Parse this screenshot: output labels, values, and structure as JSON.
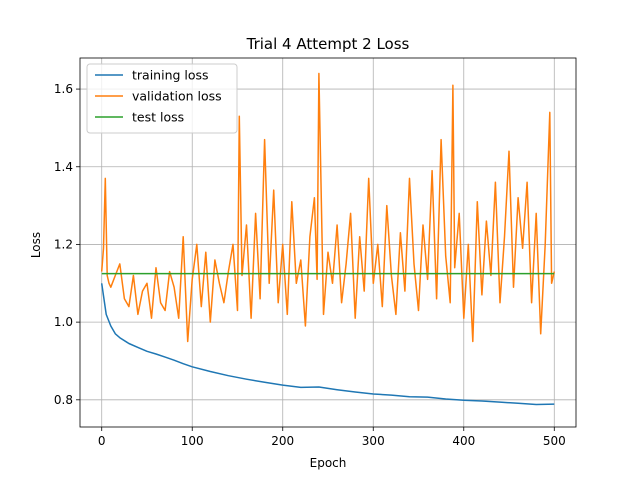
{
  "chart_data": {
    "type": "line",
    "title": "Trial 4 Attempt 2 Loss",
    "xlabel": "Epoch",
    "ylabel": "Loss",
    "xlim": [
      -24,
      524
    ],
    "ylim": [
      0.73,
      1.68
    ],
    "xticks": [
      0,
      100,
      200,
      300,
      400,
      500
    ],
    "yticks": [
      0.8,
      1.0,
      1.2,
      1.4,
      1.6
    ],
    "yticks_labels": [
      "0.8",
      "1.0",
      "1.2",
      "1.4",
      "1.6"
    ],
    "grid": true,
    "legend": "upper left",
    "series": [
      {
        "name": "training loss",
        "color": "#1f77b4",
        "x": [
          0,
          5,
          10,
          15,
          20,
          30,
          40,
          50,
          60,
          70,
          80,
          90,
          100,
          120,
          140,
          160,
          180,
          200,
          220,
          240,
          260,
          280,
          300,
          320,
          340,
          360,
          380,
          400,
          420,
          440,
          460,
          480,
          500
        ],
        "y": [
          1.1,
          1.02,
          0.99,
          0.97,
          0.96,
          0.945,
          0.935,
          0.925,
          0.918,
          0.91,
          0.902,
          0.893,
          0.885,
          0.873,
          0.862,
          0.853,
          0.845,
          0.838,
          0.832,
          0.833,
          0.826,
          0.82,
          0.815,
          0.812,
          0.808,
          0.807,
          0.802,
          0.799,
          0.797,
          0.794,
          0.791,
          0.788,
          0.789
        ]
      },
      {
        "name": "validation loss",
        "color": "#ff7f0e",
        "x": [
          0,
          2,
          4,
          6,
          8,
          10,
          15,
          20,
          25,
          30,
          35,
          40,
          45,
          50,
          55,
          60,
          65,
          70,
          75,
          80,
          85,
          90,
          95,
          100,
          105,
          110,
          115,
          120,
          125,
          130,
          135,
          140,
          145,
          150,
          152,
          155,
          160,
          165,
          170,
          175,
          180,
          185,
          190,
          195,
          200,
          205,
          210,
          215,
          220,
          225,
          230,
          235,
          238,
          240,
          245,
          250,
          255,
          260,
          265,
          270,
          275,
          280,
          285,
          290,
          295,
          300,
          305,
          310,
          315,
          320,
          325,
          330,
          335,
          340,
          345,
          350,
          355,
          360,
          365,
          370,
          375,
          380,
          385,
          388,
          390,
          395,
          400,
          405,
          410,
          415,
          420,
          425,
          430,
          435,
          440,
          445,
          450,
          455,
          460,
          465,
          470,
          475,
          480,
          485,
          490,
          495,
          497,
          500
        ],
        "y": [
          1.13,
          1.19,
          1.37,
          1.12,
          1.1,
          1.09,
          1.12,
          1.15,
          1.06,
          1.04,
          1.12,
          1.02,
          1.08,
          1.1,
          1.01,
          1.14,
          1.05,
          1.03,
          1.13,
          1.09,
          1.01,
          1.22,
          0.95,
          1.11,
          1.2,
          1.04,
          1.18,
          1.0,
          1.16,
          1.1,
          1.05,
          1.13,
          1.2,
          1.03,
          1.53,
          1.12,
          1.25,
          1.01,
          1.28,
          1.06,
          1.47,
          1.1,
          1.34,
          1.05,
          1.2,
          1.02,
          1.31,
          1.1,
          1.16,
          0.99,
          1.22,
          1.32,
          1.11,
          1.64,
          1.02,
          1.18,
          1.1,
          1.25,
          1.05,
          1.15,
          1.28,
          1.01,
          1.22,
          1.08,
          1.37,
          1.1,
          1.2,
          1.04,
          1.3,
          1.12,
          1.02,
          1.23,
          1.08,
          1.37,
          1.15,
          1.03,
          1.25,
          1.11,
          1.39,
          1.06,
          1.47,
          1.17,
          1.05,
          1.61,
          1.14,
          1.28,
          1.01,
          1.2,
          0.95,
          1.31,
          1.07,
          1.26,
          1.12,
          1.36,
          1.05,
          1.22,
          1.44,
          1.09,
          1.32,
          1.19,
          1.36,
          1.05,
          1.28,
          0.97,
          1.2,
          1.54,
          1.1,
          1.13
        ]
      },
      {
        "name": "test loss",
        "color": "#2ca02c",
        "x": [
          0,
          500
        ],
        "y": [
          1.125,
          1.125
        ]
      }
    ]
  }
}
